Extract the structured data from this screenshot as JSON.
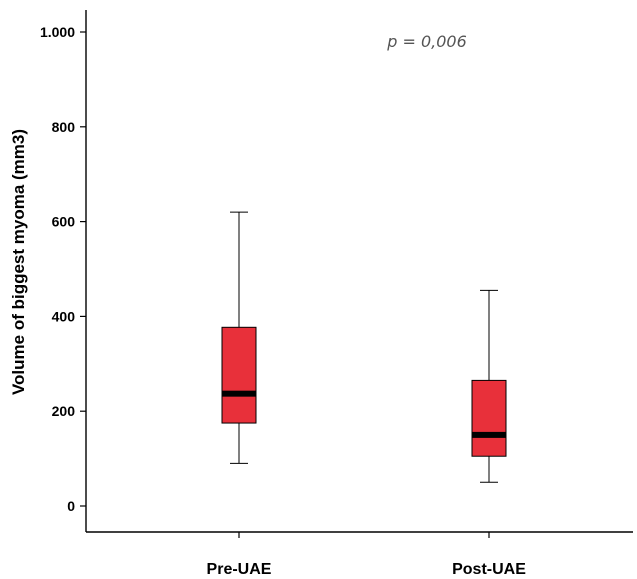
{
  "chart_data": {
    "type": "boxplot",
    "ylabel": "Volume of biggest myoma (mm3)",
    "ylim": [
      0,
      1000
    ],
    "yticks": [
      0,
      200,
      400,
      600,
      800,
      1000
    ],
    "ytick_labels": [
      "0",
      "200",
      "400",
      "600",
      "800",
      "1.000"
    ],
    "categories": [
      "Pre-UAE",
      "Post-UAE"
    ],
    "boxes": [
      {
        "label": "Pre-UAE",
        "whisker_low": 90,
        "q1": 175,
        "median": 237,
        "q3": 377,
        "whisker_high": 620
      },
      {
        "label": "Post-UAE",
        "whisker_low": 50,
        "q1": 105,
        "median": 150,
        "q3": 265,
        "whisker_high": 455
      }
    ],
    "annotation": "p = 0,006",
    "box_color": "#e8303a",
    "median_color": "#000000",
    "grid": false
  }
}
